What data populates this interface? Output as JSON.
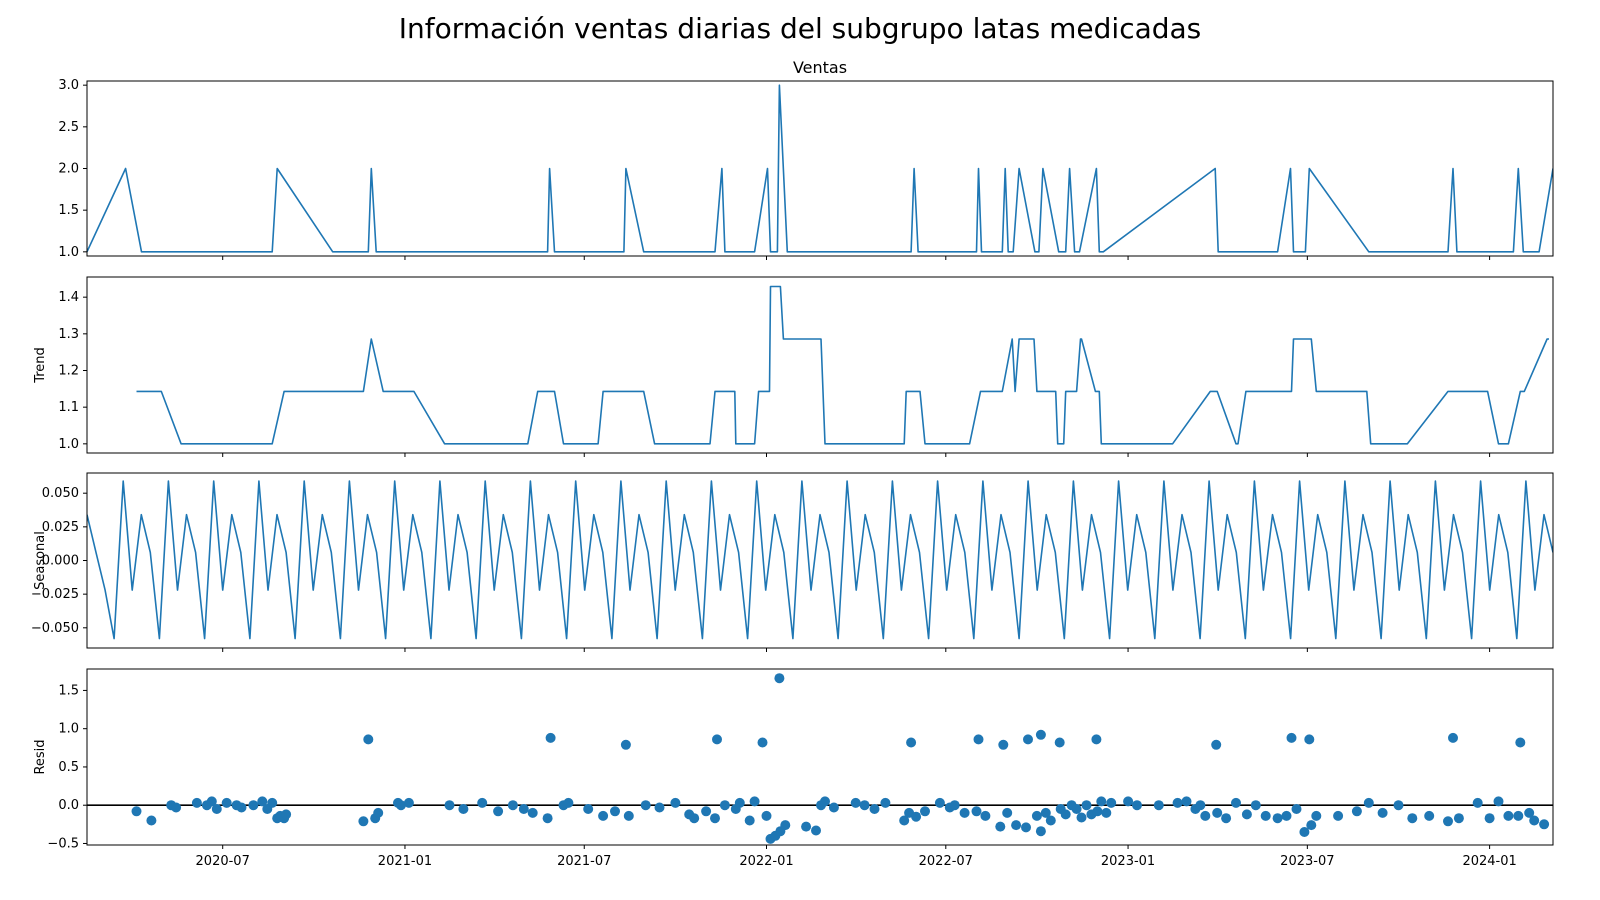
{
  "title": "Información ventas diarias del subgrupo latas medicadas",
  "chart_data": [
    {
      "type": "line",
      "title": "Ventas",
      "ylabel": "",
      "ylim": [
        0.95,
        3.05
      ],
      "yticks": [
        1.0,
        1.5,
        2.0,
        2.5,
        3.0
      ],
      "ytick_labels": [
        "1.0",
        "1.5",
        "2.0",
        "2.5",
        "3.0"
      ],
      "color": "#1f77b4",
      "x": [
        "2020-02-15",
        "2020-03-25",
        "2020-04-10",
        "2020-08-20",
        "2020-08-25",
        "2020-10-20",
        "2020-11-25",
        "2020-11-28",
        "2020-12-03",
        "2021-05-25",
        "2021-05-27",
        "2021-06-01",
        "2021-08-10",
        "2021-08-12",
        "2021-08-30",
        "2021-11-10",
        "2021-11-17",
        "2021-11-20",
        "2021-12-20",
        "2022-01-02",
        "2022-01-05",
        "2022-01-12",
        "2022-01-14",
        "2022-01-22",
        "2022-05-27",
        "2022-05-30",
        "2022-06-03",
        "2022-08-01",
        "2022-08-03",
        "2022-08-06",
        "2022-08-27",
        "2022-08-30",
        "2022-09-02",
        "2022-09-07",
        "2022-09-13",
        "2022-09-29",
        "2022-10-03",
        "2022-10-07",
        "2022-10-23",
        "2022-10-30",
        "2022-11-03",
        "2022-11-08",
        "2022-11-13",
        "2022-11-30",
        "2022-12-03",
        "2022-12-07",
        "2023-03-30",
        "2023-04-02",
        "2023-04-05",
        "2023-06-01",
        "2023-06-14",
        "2023-06-17",
        "2023-06-29",
        "2023-07-03",
        "2023-09-01",
        "2023-11-20",
        "2023-11-25",
        "2023-11-29",
        "2024-01-25",
        "2024-01-30",
        "2024-02-04",
        "2024-02-20",
        "2024-03-05"
      ],
      "values": [
        1,
        2,
        1,
        1,
        2,
        1,
        1,
        2,
        1,
        1,
        2,
        1,
        1,
        2,
        1,
        1,
        2,
        1,
        1,
        2,
        1,
        1,
        3,
        1,
        1,
        2,
        1,
        1,
        2,
        1,
        1,
        2,
        1,
        1,
        2,
        1,
        1,
        2,
        1,
        1,
        2,
        1,
        1,
        2,
        1,
        1,
        2,
        1,
        1,
        1,
        2,
        1,
        1,
        2,
        1,
        1,
        2,
        1,
        1,
        2,
        1,
        1,
        2
      ]
    },
    {
      "type": "line",
      "title": "",
      "ylabel": "Trend",
      "ylim": [
        0.975,
        1.455
      ],
      "yticks": [
        1.0,
        1.1,
        1.2,
        1.3,
        1.4
      ],
      "ytick_labels": [
        "1.0",
        "1.1",
        "1.2",
        "1.3",
        "1.4"
      ],
      "color": "#1f77b4",
      "x": [
        "2020-04-05",
        "2020-04-30",
        "2020-05-20",
        "2020-08-20",
        "2020-09-01",
        "2020-11-20",
        "2020-11-28",
        "2020-12-10",
        "2021-01-10",
        "2021-02-10",
        "2021-05-05",
        "2021-05-15",
        "2021-06-01",
        "2021-06-10",
        "2021-07-15",
        "2021-07-20",
        "2021-08-30",
        "2021-09-10",
        "2021-11-05",
        "2021-11-10",
        "2021-11-30",
        "2021-12-01",
        "2021-12-20",
        "2021-12-24",
        "2022-01-04",
        "2022-01-05",
        "2022-01-15",
        "2022-01-18",
        "2022-02-25",
        "2022-03-01",
        "2022-05-20",
        "2022-05-22",
        "2022-06-05",
        "2022-06-10",
        "2022-07-25",
        "2022-08-05",
        "2022-08-27",
        "2022-09-06",
        "2022-09-09",
        "2022-09-13",
        "2022-09-28",
        "2022-10-01",
        "2022-10-20",
        "2022-10-22",
        "2022-10-28",
        "2022-10-30",
        "2022-11-10",
        "2022-11-14",
        "2022-11-15",
        "2022-11-29",
        "2022-12-03",
        "2022-12-05",
        "2023-02-15",
        "2023-03-25",
        "2023-04-01",
        "2023-04-20",
        "2023-04-22",
        "2023-04-30",
        "2023-05-05",
        "2023-06-15",
        "2023-06-17",
        "2023-07-05",
        "2023-07-10",
        "2023-08-30",
        "2023-09-03",
        "2023-10-10",
        "2023-11-20",
        "2023-12-30",
        "2024-01-10",
        "2024-01-20",
        "2024-02-01",
        "2024-02-05",
        "2024-02-28",
        "2024-03-01"
      ],
      "values": [
        1.143,
        1.143,
        1.0,
        1.0,
        1.143,
        1.143,
        1.286,
        1.143,
        1.143,
        1.0,
        1.0,
        1.143,
        1.143,
        1.0,
        1.0,
        1.143,
        1.143,
        1.0,
        1.0,
        1.143,
        1.143,
        1.0,
        1.0,
        1.143,
        1.143,
        1.429,
        1.429,
        1.286,
        1.286,
        1.0,
        1.0,
        1.143,
        1.143,
        1.0,
        1.0,
        1.143,
        1.143,
        1.286,
        1.143,
        1.286,
        1.286,
        1.143,
        1.143,
        1.0,
        1.0,
        1.143,
        1.143,
        1.286,
        1.286,
        1.143,
        1.143,
        1.0,
        1.0,
        1.143,
        1.143,
        1.0,
        1.0,
        1.143,
        1.143,
        1.143,
        1.286,
        1.286,
        1.143,
        1.143,
        1.0,
        1.0,
        1.143,
        1.143,
        1.0,
        1.0,
        1.143,
        1.143,
        1.286,
        1.286
      ]
    },
    {
      "type": "line",
      "title": "",
      "ylabel": "Seasonal",
      "ylim": [
        -0.065,
        0.065
      ],
      "yticks": [
        -0.05,
        -0.025,
        0.0,
        0.025,
        0.05
      ],
      "ytick_labels": [
        "−0.050",
        "−0.025",
        "0.000",
        "0.025",
        "0.050"
      ],
      "color": "#1f77b4",
      "x_start": "2020-02-15",
      "x_end": "2024-03-05",
      "values": [
        0.034,
        0.006,
        -0.022,
        -0.058,
        0.059,
        -0.022,
        0.034,
        0.006,
        -0.058,
        0.059,
        -0.022,
        0.034,
        0.006,
        -0.058,
        0.059,
        -0.022,
        0.034,
        0.006,
        -0.058,
        0.059,
        -0.022,
        0.034,
        0.006,
        -0.058,
        0.059,
        -0.022,
        0.034,
        0.006,
        -0.058,
        0.059,
        -0.022,
        0.034,
        0.006,
        -0.058,
        0.059,
        -0.022,
        0.034,
        0.006,
        -0.058,
        0.059,
        -0.022,
        0.034,
        0.006,
        -0.058,
        0.059,
        -0.022,
        0.034,
        0.006,
        -0.058,
        0.059,
        -0.022,
        0.034,
        0.006,
        -0.058,
        0.059,
        -0.022,
        0.034,
        0.006,
        -0.058,
        0.059,
        -0.022,
        0.034,
        0.006,
        -0.058,
        0.059,
        -0.022,
        0.034,
        0.006,
        -0.058,
        0.059,
        -0.022,
        0.034,
        0.006,
        -0.058,
        0.059,
        -0.022,
        0.034,
        0.006,
        -0.058,
        0.059,
        -0.022,
        0.034,
        0.006,
        -0.058,
        0.059,
        -0.022,
        0.034,
        0.006,
        -0.058,
        0.059,
        -0.022,
        0.034,
        0.006,
        -0.058,
        0.059,
        -0.022,
        0.034,
        0.006,
        -0.058,
        0.059,
        -0.022,
        0.034,
        0.006,
        -0.058,
        0.059,
        -0.022,
        0.034,
        0.006,
        -0.058,
        0.059,
        -0.022,
        0.034,
        0.006,
        -0.058,
        0.059,
        -0.022,
        0.034,
        0.006,
        -0.058,
        0.059,
        -0.022,
        0.034,
        0.006,
        -0.058,
        0.059,
        -0.022,
        0.034,
        0.006,
        -0.058,
        0.059,
        -0.022,
        0.034,
        0.006,
        -0.058,
        0.059,
        -0.022,
        0.034,
        0.006,
        -0.058,
        0.059,
        -0.022,
        0.034,
        0.006,
        -0.058,
        0.059,
        -0.022,
        0.034,
        0.006,
        -0.058,
        0.059,
        -0.022,
        0.034,
        0.006,
        -0.058,
        0.059,
        -0.022,
        0.034,
        0.006,
        -0.058,
        0.059,
        -0.022,
        0.034,
        0.006
      ]
    },
    {
      "type": "scatter",
      "title": "",
      "ylabel": "Resid",
      "ylim": [
        -0.52,
        1.78
      ],
      "yticks": [
        -0.5,
        0.0,
        0.5,
        1.0,
        1.5
      ],
      "ytick_labels": [
        "−0.5",
        "0.0",
        "0.5",
        "1.0",
        "1.5"
      ],
      "color": "#1f77b4",
      "hline": 0.0,
      "x": [
        "2020-04-05",
        "2020-04-20",
        "2020-05-10",
        "2020-05-15",
        "2020-06-05",
        "2020-06-15",
        "2020-06-20",
        "2020-06-25",
        "2020-07-05",
        "2020-07-15",
        "2020-07-20",
        "2020-08-01",
        "2020-08-10",
        "2020-08-15",
        "2020-08-20",
        "2020-08-25",
        "2020-08-28",
        "2020-09-01",
        "2020-09-03",
        "2020-11-20",
        "2020-12-02",
        "2020-12-05",
        "2020-12-25",
        "2020-12-28",
        "2021-01-05",
        "2021-02-15",
        "2021-03-01",
        "2021-03-20",
        "2021-04-05",
        "2021-04-20",
        "2021-05-01",
        "2021-05-10",
        "2021-05-25",
        "2021-06-10",
        "2021-06-15",
        "2021-07-05",
        "2021-07-20",
        "2021-08-01",
        "2021-08-15",
        "2021-09-01",
        "2021-09-15",
        "2021-10-01",
        "2021-10-15",
        "2021-10-20",
        "2021-11-01",
        "2021-11-10",
        "2021-11-20",
        "2021-12-01",
        "2021-12-05",
        "2021-12-15",
        "2021-12-20",
        "2022-01-01",
        "2022-01-05",
        "2022-01-10",
        "2022-01-15",
        "2022-01-20",
        "2022-02-10",
        "2022-02-20",
        "2022-02-25",
        "2022-03-01",
        "2022-03-10",
        "2022-04-01",
        "2022-04-10",
        "2022-04-20",
        "2022-05-01",
        "2022-05-20",
        "2022-05-25",
        "2022-06-01",
        "2022-06-10",
        "2022-06-25",
        "2022-07-05",
        "2022-07-10",
        "2022-07-20",
        "2022-08-01",
        "2022-08-10",
        "2022-08-25",
        "2022-09-01",
        "2022-09-10",
        "2022-09-20",
        "2022-10-01",
        "2022-10-05",
        "2022-10-10",
        "2022-10-15",
        "2022-10-25",
        "2022-10-30",
        "2022-11-05",
        "2022-11-10",
        "2022-11-15",
        "2022-11-20",
        "2022-11-25",
        "2022-12-01",
        "2022-12-05",
        "2022-12-10",
        "2022-12-15",
        "2023-01-01",
        "2023-01-10",
        "2023-02-01",
        "2023-02-20",
        "2023-03-01",
        "2023-03-10",
        "2023-03-15",
        "2023-03-20",
        "2023-04-01",
        "2023-04-10",
        "2023-04-20",
        "2023-05-01",
        "2023-05-10",
        "2023-05-20",
        "2023-06-01",
        "2023-06-10",
        "2023-06-20",
        "2023-06-28",
        "2023-07-05",
        "2023-07-10",
        "2023-08-01",
        "2023-08-20",
        "2023-09-01",
        "2023-09-15",
        "2023-10-01",
        "2023-10-15",
        "2023-11-01",
        "2023-11-20",
        "2023-12-01",
        "2023-12-20",
        "2024-01-01",
        "2024-01-10",
        "2024-01-20",
        "2024-01-30",
        "2024-02-10",
        "2024-02-15",
        "2024-02-25",
        "2020-11-25",
        "2021-05-28",
        "2021-08-12",
        "2021-11-12",
        "2021-12-28",
        "2022-01-14",
        "2022-05-27",
        "2022-08-03",
        "2022-08-28",
        "2022-09-22",
        "2022-10-05",
        "2022-10-24",
        "2022-11-30",
        "2023-03-31",
        "2023-06-15",
        "2023-07-03",
        "2023-11-25",
        "2024-02-01"
      ],
      "values": [
        -0.08,
        -0.2,
        0.0,
        -0.03,
        0.03,
        0.0,
        0.05,
        -0.05,
        0.03,
        0.0,
        -0.03,
        0.0,
        0.05,
        -0.05,
        0.03,
        -0.17,
        -0.14,
        -0.17,
        -0.12,
        -0.21,
        -0.17,
        -0.1,
        0.03,
        0.0,
        0.03,
        0.0,
        -0.05,
        0.03,
        -0.08,
        0.0,
        -0.05,
        -0.1,
        -0.17,
        0.0,
        0.03,
        -0.05,
        -0.14,
        -0.08,
        -0.14,
        0.0,
        -0.03,
        0.03,
        -0.12,
        -0.17,
        -0.08,
        -0.17,
        0.0,
        -0.05,
        0.03,
        -0.2,
        0.05,
        -0.14,
        -0.44,
        -0.4,
        -0.34,
        -0.26,
        -0.28,
        -0.33,
        0.0,
        0.05,
        -0.03,
        0.03,
        0.0,
        -0.05,
        0.03,
        -0.2,
        -0.1,
        -0.15,
        -0.08,
        0.03,
        -0.03,
        0.0,
        -0.1,
        -0.08,
        -0.14,
        -0.28,
        -0.1,
        -0.26,
        -0.29,
        -0.14,
        -0.34,
        -0.1,
        -0.2,
        -0.05,
        -0.12,
        0.0,
        -0.05,
        -0.16,
        0.0,
        -0.12,
        -0.08,
        0.05,
        -0.1,
        0.03,
        0.05,
        0.0,
        0.0,
        0.03,
        0.05,
        -0.05,
        0.0,
        -0.14,
        -0.1,
        -0.17,
        0.03,
        -0.12,
        0.0,
        -0.14,
        -0.17,
        -0.14,
        -0.05,
        -0.35,
        -0.26,
        -0.14,
        -0.14,
        -0.08,
        0.03,
        -0.1,
        0.0,
        -0.17,
        -0.14,
        -0.21,
        -0.17,
        0.03,
        -0.17,
        0.05,
        -0.14,
        -0.14,
        -0.1,
        -0.2,
        -0.25,
        0.86,
        0.88,
        0.79,
        0.86,
        0.82,
        1.66,
        0.82,
        0.86,
        0.79,
        0.86,
        0.92,
        0.82,
        0.86,
        0.79,
        0.88,
        0.86,
        0.88,
        0.82
      ]
    }
  ],
  "x_axis": {
    "range": [
      "2020-02-15",
      "2024-03-05"
    ],
    "ticks": [
      "2020-07-01",
      "2021-01-01",
      "2021-07-01",
      "2022-01-01",
      "2022-07-01",
      "2023-01-01",
      "2023-07-01",
      "2024-01-01"
    ],
    "tick_labels": [
      "2020-07",
      "2021-01",
      "2021-07",
      "2022-01",
      "2022-07",
      "2023-01",
      "2023-07",
      "2024-01"
    ]
  }
}
